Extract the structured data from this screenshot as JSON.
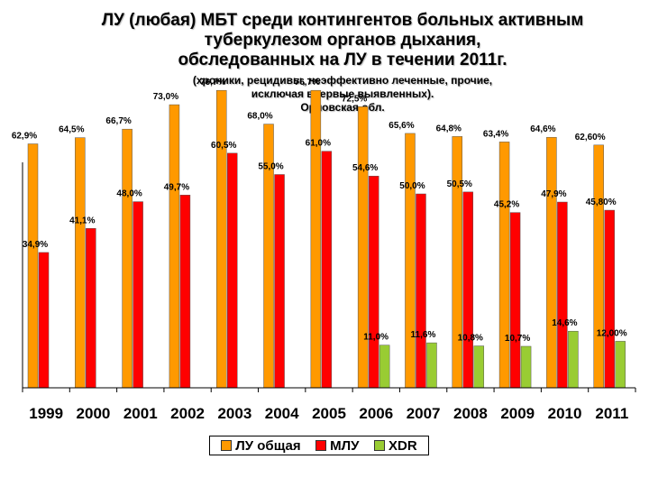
{
  "title": {
    "lines": [
      "ЛУ (любая) МБТ среди контингентов больных активным",
      "туберкулезом органов дыхания,",
      "обследованных на ЛУ в течении 2011г."
    ],
    "subtitle_lines": [
      "(хроники, рецидивы, неэффективно леченные, прочие,",
      "исключая впервые выявленных).",
      "Орловская обл."
    ]
  },
  "colors": {
    "lu": "#FF9900",
    "mlu": "#FF0000",
    "xdr": "#99CC33"
  },
  "chart_data": {
    "type": "bar",
    "categories": [
      "1999",
      "2000",
      "2001",
      "2002",
      "2003",
      "2004",
      "2005",
      "2006",
      "2007",
      "2008",
      "2009",
      "2010",
      "2011"
    ],
    "ylim": [
      0,
      80
    ],
    "grid": false,
    "legend_position": "bottom",
    "series": [
      {
        "name": "ЛУ общая",
        "values": [
          62.9,
          64.5,
          66.7,
          73.0,
          76.7,
          68.0,
          76.7,
          72.5,
          65.6,
          64.8,
          63.4,
          64.6,
          62.6
        ],
        "labels": [
          "62,9%",
          "64,5%",
          "66,7%",
          "73,0%",
          "76,7%",
          "68,0%",
          "76,7%",
          "72,5%",
          "65,6%",
          "64,8%",
          "63,4%",
          "64,6%",
          "62,60%"
        ]
      },
      {
        "name": "МЛУ",
        "values": [
          34.9,
          41.1,
          48.0,
          49.7,
          60.5,
          55.0,
          61.0,
          54.6,
          50.0,
          50.5,
          45.2,
          47.9,
          45.8
        ],
        "labels": [
          "34,9%",
          "41,1%",
          "48,0%",
          "49,7%",
          "60,5%",
          "55,0%",
          "61,0%",
          "54,6%",
          "50,0%",
          "50,5%",
          "45,2%",
          "47,9%",
          "45,80%"
        ]
      },
      {
        "name": "XDR",
        "values": [
          null,
          null,
          null,
          null,
          null,
          null,
          null,
          11.0,
          11.6,
          10.8,
          10.7,
          14.6,
          12.0
        ],
        "labels": [
          null,
          null,
          null,
          null,
          null,
          null,
          null,
          "11,0%",
          "11,6%",
          "10,8%",
          "10,7%",
          "14,6%",
          "12,00%"
        ]
      }
    ]
  }
}
